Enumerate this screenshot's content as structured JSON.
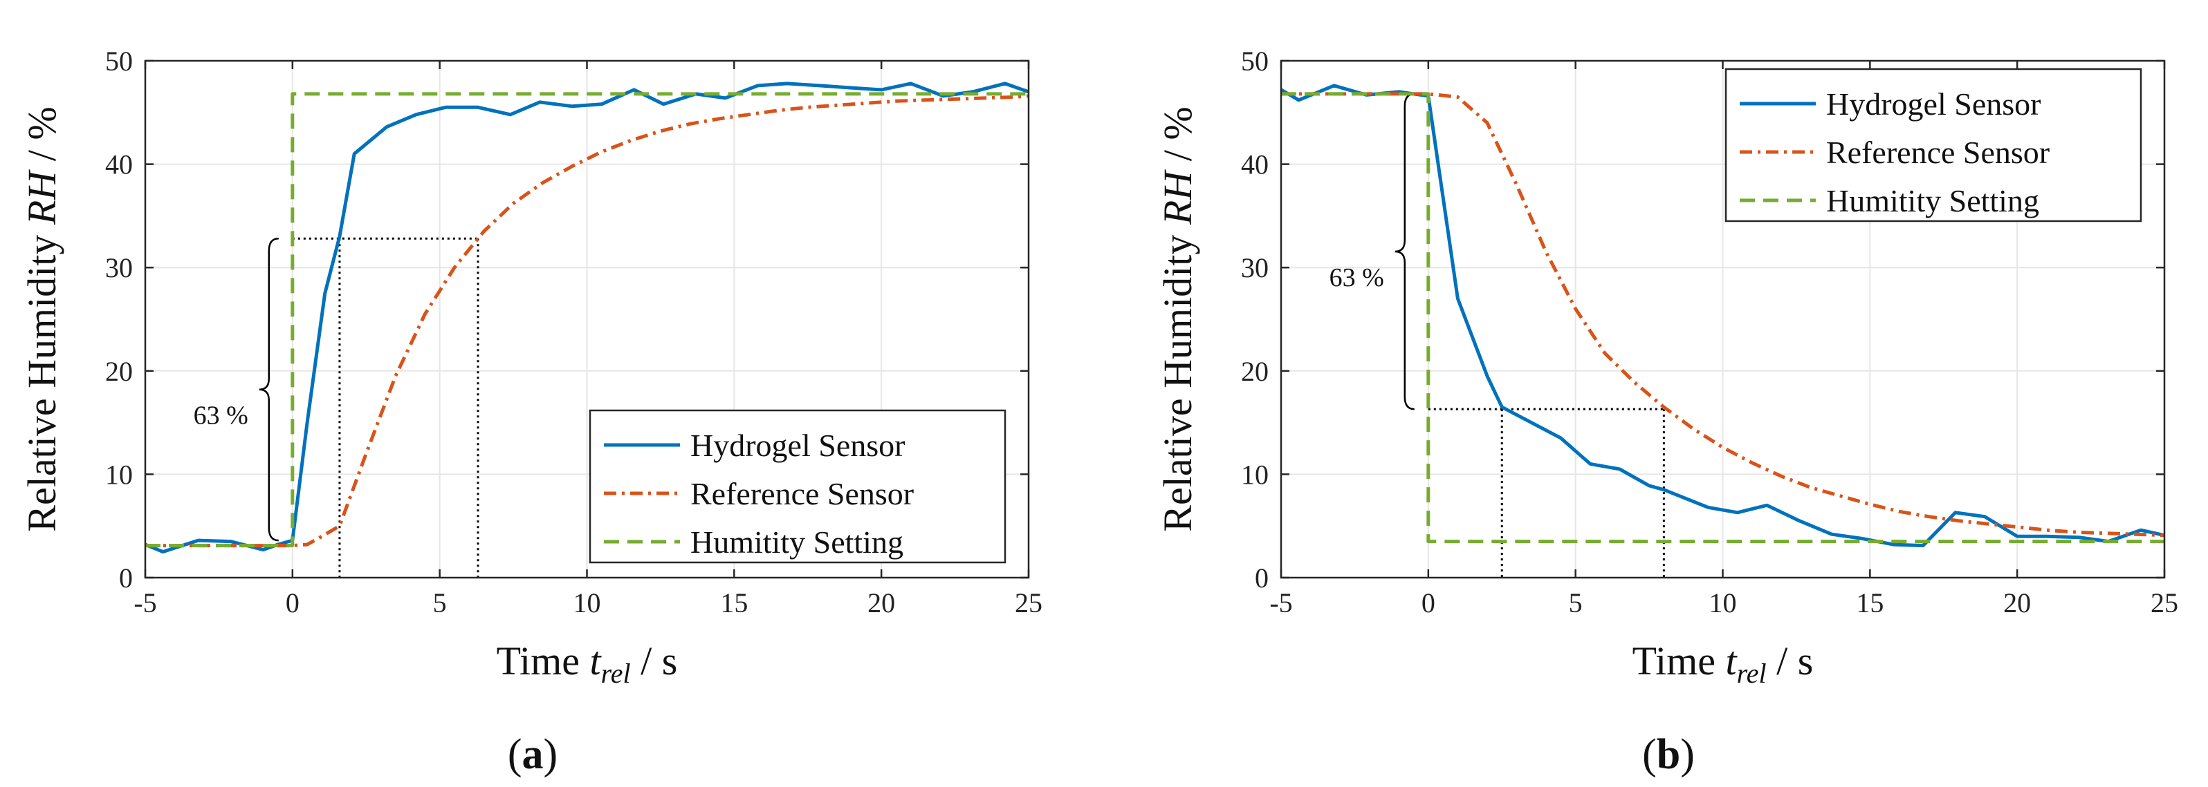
{
  "chart_data": [
    {
      "type": "line",
      "panel_label": "(a)",
      "xlabel": {
        "prefix": "Time ",
        "var": "t",
        "sub": "rel",
        "suffix": " / s"
      },
      "ylabel": {
        "prefix": "Relative Humidity ",
        "var": "RH",
        "suffix": " / %"
      },
      "xlim": [
        -5,
        25
      ],
      "ylim": [
        0,
        50
      ],
      "xticks": [
        -5,
        0,
        5,
        10,
        15,
        20,
        25
      ],
      "yticks": [
        0,
        10,
        20,
        30,
        40,
        50
      ],
      "grid": true,
      "legend_position": "bottom-right",
      "series": [
        {
          "name": "Hydrogel Sensor",
          "color": "#0072BD",
          "style": "solid",
          "x": [
            -5,
            -4.4,
            -3.2,
            -2.1,
            -1,
            -0.5,
            0,
            0.5,
            1.1,
            1.6,
            2.1,
            3.2,
            4.2,
            5.2,
            6.3,
            7.4,
            8.4,
            9.5,
            10.5,
            11.6,
            12.6,
            13.7,
            14.7,
            15.8,
            16.8,
            17.9,
            18.9,
            20,
            21,
            22.1,
            23.1,
            24.2,
            25
          ],
          "y": [
            3.2,
            2.5,
            3.6,
            3.5,
            2.7,
            3.2,
            3.6,
            15,
            27.5,
            33,
            41,
            43.6,
            44.8,
            45.5,
            45.5,
            44.8,
            46,
            45.6,
            45.8,
            47.2,
            45.8,
            46.8,
            46.4,
            47.6,
            47.8,
            47.6,
            47.4,
            47.2,
            47.8,
            46.6,
            47,
            47.8,
            47
          ]
        },
        {
          "name": "Reference Sensor",
          "color": "#D95319",
          "style": "dashdot",
          "x": [
            -5,
            -4,
            -3,
            -2,
            -1,
            0,
            0.5,
            1,
            1.6,
            2.5,
            3.5,
            4.5,
            5.5,
            6.5,
            7.5,
            8.5,
            9.5,
            10.5,
            11.5,
            12.5,
            13.5,
            14.5,
            15.5,
            16.5,
            17.5,
            18.5,
            19.5,
            20.5,
            21.5,
            22.5,
            23.5,
            24.5,
            25
          ],
          "y": [
            3.1,
            3.1,
            3.1,
            3.1,
            3.1,
            3.1,
            3.2,
            4,
            5,
            12,
            19.5,
            25.5,
            30,
            33.5,
            36.2,
            38.2,
            39.8,
            41.2,
            42.3,
            43.2,
            43.9,
            44.4,
            44.8,
            45.2,
            45.5,
            45.7,
            45.9,
            46.1,
            46.2,
            46.3,
            46.4,
            46.5,
            46.6
          ]
        },
        {
          "name": "Humitity Setting",
          "color": "#77AC30",
          "style": "dashed",
          "x": [
            -5,
            0,
            0,
            25
          ],
          "y": [
            3.1,
            3.1,
            46.8,
            46.8
          ]
        }
      ],
      "annotations": [
        {
          "text": "63 %",
          "type": "brace",
          "y_range": [
            3.6,
            32.8
          ],
          "x": -0.8
        },
        {
          "type": "dotted-guide",
          "y": 32.8,
          "x_start": 0,
          "x_end": 6.3,
          "drops_at_x": [
            1.6,
            6.3
          ]
        }
      ]
    },
    {
      "type": "line",
      "panel_label": "(b)",
      "xlabel": {
        "prefix": "Time ",
        "var": "t",
        "sub": "rel",
        "suffix": " / s"
      },
      "ylabel": {
        "prefix": "Relative Humidity ",
        "var": "RH",
        "suffix": " / %"
      },
      "xlim": [
        -5,
        25
      ],
      "ylim": [
        0,
        50
      ],
      "xticks": [
        -5,
        0,
        5,
        10,
        15,
        20,
        25
      ],
      "yticks": [
        0,
        10,
        20,
        30,
        40,
        50
      ],
      "grid": true,
      "legend_position": "top-right",
      "series": [
        {
          "name": "Hydrogel Sensor",
          "color": "#0072BD",
          "style": "solid",
          "x": [
            -5,
            -4.4,
            -3.2,
            -2.1,
            -1,
            0,
            1,
            2,
            2.5,
            3.5,
            4.5,
            5.5,
            6.5,
            7.5,
            8,
            9.5,
            10.5,
            11.5,
            12.6,
            13.7,
            14.7,
            15.8,
            16.8,
            17.9,
            18.9,
            20,
            21,
            22.1,
            23.1,
            24.2,
            25
          ],
          "y": [
            47.2,
            46.2,
            47.6,
            46.7,
            47,
            46.6,
            27,
            19.5,
            16.5,
            15,
            13.5,
            11,
            10.5,
            8.9,
            8.5,
            6.8,
            6.3,
            7,
            5.5,
            4.2,
            3.8,
            3.2,
            3.1,
            6.3,
            5.9,
            4,
            4,
            3.9,
            3.5,
            4.6,
            4.1
          ]
        },
        {
          "name": "Reference Sensor",
          "color": "#D95319",
          "style": "dashdot",
          "x": [
            -5,
            -4,
            -3,
            -2,
            -1,
            0,
            1,
            2,
            3,
            4,
            5,
            6,
            7,
            8,
            9,
            10,
            11,
            12,
            13,
            14,
            15,
            16,
            17,
            18,
            19,
            20,
            21,
            22,
            23,
            24,
            25
          ],
          "y": [
            46.8,
            46.8,
            46.8,
            46.8,
            46.8,
            46.8,
            46.5,
            44,
            38,
            31.5,
            26,
            21.7,
            18.9,
            16.5,
            14.4,
            12.6,
            11.1,
            9.8,
            8.7,
            7.9,
            7.1,
            6.4,
            5.9,
            5.5,
            5.2,
            4.9,
            4.6,
            4.4,
            4.3,
            4.2,
            4.1
          ]
        },
        {
          "name": "Humitity Setting",
          "color": "#77AC30",
          "style": "dashed",
          "x": [
            -5,
            0,
            0,
            25
          ],
          "y": [
            46.8,
            46.8,
            3.5,
            3.5
          ]
        }
      ],
      "annotations": [
        {
          "text": "63 %",
          "type": "brace",
          "y_range": [
            16.3,
            46.8
          ],
          "x": -0.8
        },
        {
          "type": "dotted-guide",
          "y": 16.3,
          "x_start": 0,
          "x_end": 8,
          "drops_at_x": [
            2.5,
            8
          ]
        }
      ]
    }
  ]
}
